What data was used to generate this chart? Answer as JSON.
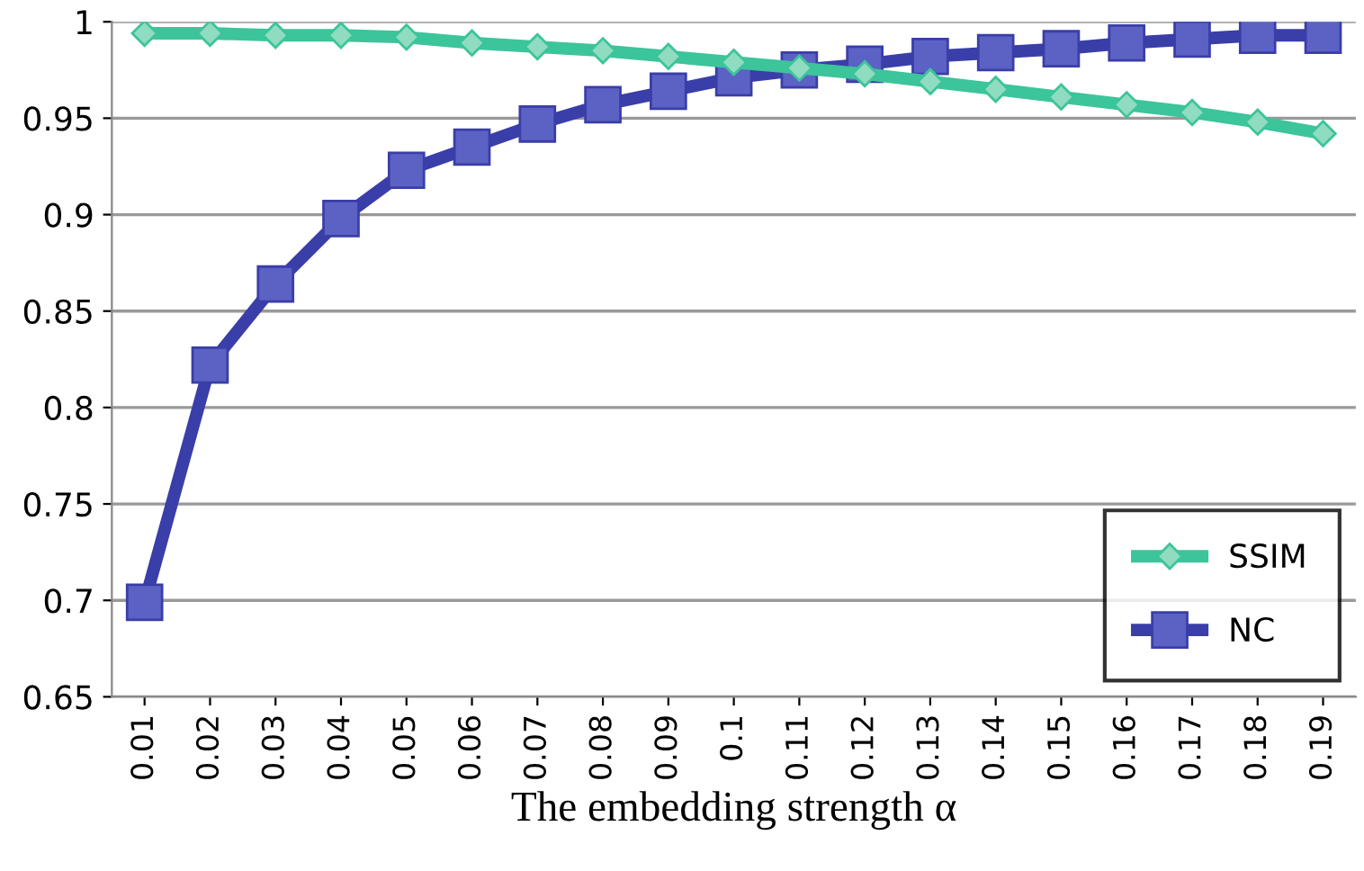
{
  "chart_data": {
    "type": "line",
    "xlabel": "The embedding strength α",
    "categories": [
      "0.01",
      "0.02",
      "0.03",
      "0.04",
      "0.05",
      "0.06",
      "0.07",
      "0.08",
      "0.09",
      "0.1",
      "0.11",
      "0.12",
      "0.13",
      "0.14",
      "0.15",
      "0.16",
      "0.17",
      "0.18",
      "0.19"
    ],
    "series": [
      {
        "name": "SSIM",
        "color": "#3cc49a",
        "marker": "diamond",
        "values": [
          0.994,
          0.994,
          0.993,
          0.993,
          0.992,
          0.989,
          0.987,
          0.985,
          0.982,
          0.979,
          0.976,
          0.973,
          0.969,
          0.965,
          0.961,
          0.957,
          0.953,
          0.948,
          0.942
        ]
      },
      {
        "name": "NC",
        "color": "#3a3ea8",
        "marker": "square",
        "values": [
          0.699,
          0.822,
          0.864,
          0.898,
          0.923,
          0.935,
          0.947,
          0.957,
          0.964,
          0.971,
          0.975,
          0.978,
          0.982,
          0.984,
          0.986,
          0.989,
          0.991,
          0.993,
          0.993
        ]
      }
    ],
    "ylim": [
      0.65,
      1
    ],
    "yticks": [
      0.65,
      0.7,
      0.75,
      0.8,
      0.85,
      0.9,
      0.95,
      1
    ],
    "grid": "y",
    "legend": "bottom right",
    "line_style": "solid"
  }
}
